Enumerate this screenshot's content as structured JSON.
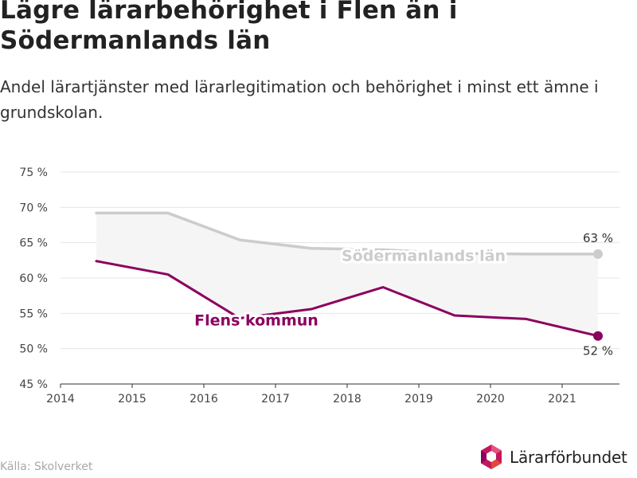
{
  "title": "Lägre lärarbehörighet i Flen än i Södermanlands län",
  "subtitle": "Andel lärartjänster med lärarlegitimation och behörighet i minst ett ämne i grundskolan.",
  "source": "Källa: Skolverket",
  "logo_text": "Lärarförbundet",
  "colors": {
    "lan": "#cccccc",
    "flen": "#8b005f",
    "band": "#f5f5f5",
    "lan_label": "#cccccc"
  },
  "chart_data": {
    "type": "line",
    "x_ticks": [
      "2014",
      "2015",
      "2016",
      "2017",
      "2018",
      "2019",
      "2020",
      "2021"
    ],
    "y_ticks": [
      "45 %",
      "50 %",
      "55 %",
      "60 %",
      "65 %",
      "70 %",
      "75 %"
    ],
    "xlim": [
      2014,
      2021.8
    ],
    "ylim": [
      45,
      75
    ],
    "grid": true,
    "series": [
      {
        "name": "Södermanlands län",
        "x": [
          2014.5,
          2015.5,
          2016.5,
          2017.5,
          2018.5,
          2019.5,
          2020.5,
          2021.5
        ],
        "values": [
          69.2,
          69.2,
          65.4,
          64.2,
          64.0,
          63.5,
          63.4,
          63.4
        ],
        "end_label": "63 %"
      },
      {
        "name": "Flens kommun",
        "x": [
          2014.5,
          2015.5,
          2016.5,
          2017.5,
          2018.5,
          2019.5,
          2020.5,
          2021.5
        ],
        "values": [
          62.4,
          60.5,
          54.3,
          55.6,
          58.7,
          54.7,
          54.2,
          51.8
        ],
        "end_label": "52 %"
      }
    ]
  }
}
